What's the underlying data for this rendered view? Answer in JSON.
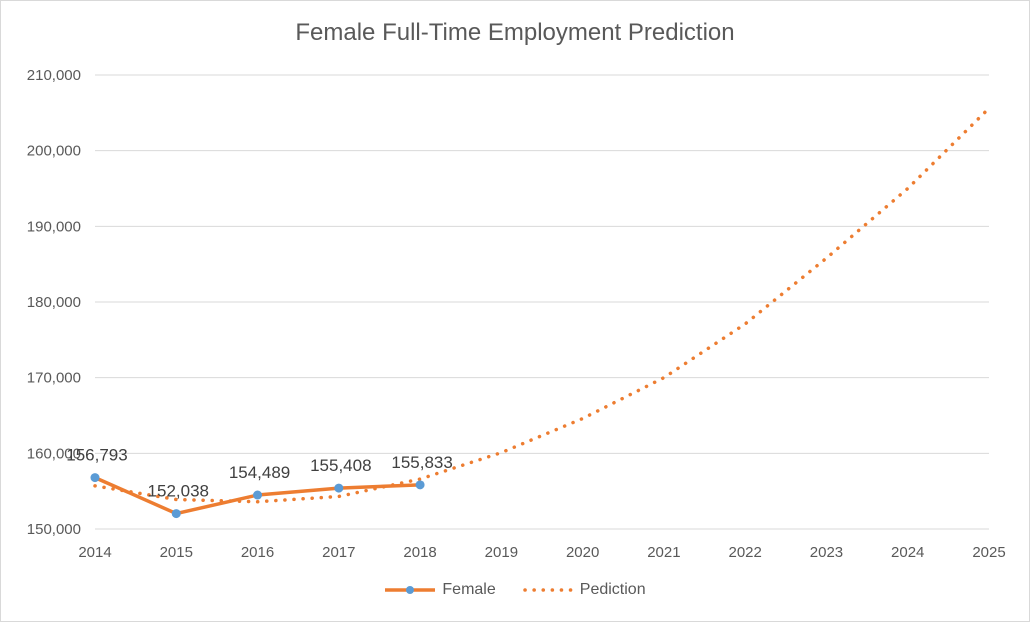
{
  "chart_data": {
    "type": "line",
    "title": "Female Full-Time Employment  Prediction",
    "xlabel": "",
    "ylabel": "",
    "categories": [
      "2014",
      "2015",
      "2016",
      "2017",
      "2018",
      "2019",
      "2020",
      "2021",
      "2022",
      "2023",
      "2024",
      "2025"
    ],
    "ylim": [
      150000,
      210000
    ],
    "yticks": [
      150000,
      160000,
      170000,
      180000,
      190000,
      200000,
      210000
    ],
    "ytick_labels": [
      "150,000",
      "160,000",
      "170,000",
      "180,000",
      "190,000",
      "200,000",
      "210,000"
    ],
    "grid": true,
    "legend_position": "bottom",
    "series": [
      {
        "name": "Female",
        "style": "solid-with-markers",
        "color": "#ED7D31",
        "marker_color": "#5B9BD5",
        "x": [
          "2014",
          "2015",
          "2016",
          "2017",
          "2018"
        ],
        "values": [
          156793,
          152038,
          154489,
          155408,
          155833
        ],
        "data_labels": [
          "156,793",
          "152,038",
          "154,489",
          "155,408",
          "155,833"
        ]
      },
      {
        "name": "Pediction",
        "style": "dotted",
        "color": "#ED7D31",
        "trend": "polynomial order 2",
        "x": [
          "2014",
          "2015",
          "2016",
          "2017",
          "2018",
          "2019",
          "2020",
          "2021",
          "2022",
          "2023",
          "2024",
          "2025"
        ],
        "values": [
          155700,
          153900,
          153600,
          154300,
          156600,
          160100,
          164600,
          170000,
          177100,
          185800,
          195000,
          205600
        ]
      }
    ]
  }
}
